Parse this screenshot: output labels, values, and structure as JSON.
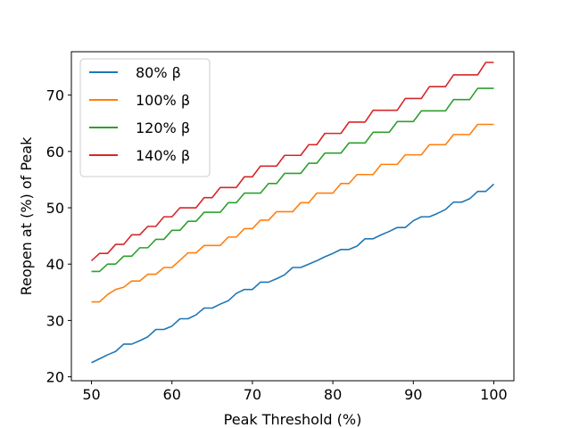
{
  "chart_data": {
    "type": "line",
    "title": "",
    "xlabel": "Peak Threshold (%)",
    "ylabel": "Reopen at (%) of Peak",
    "xlim": [
      47.5,
      102.5
    ],
    "ylim": [
      19.3,
      77.7
    ],
    "xticks": [
      50,
      60,
      70,
      80,
      90,
      100
    ],
    "yticks": [
      20,
      30,
      40,
      50,
      60,
      70
    ],
    "grid": false,
    "legend_position": "top-left",
    "x": [
      50,
      51,
      52,
      53,
      54,
      55,
      56,
      57,
      58,
      59,
      60,
      61,
      62,
      63,
      64,
      65,
      66,
      67,
      68,
      69,
      70,
      71,
      72,
      73,
      74,
      75,
      76,
      77,
      78,
      79,
      80,
      81,
      82,
      83,
      84,
      85,
      86,
      87,
      88,
      89,
      90,
      91,
      92,
      93,
      94,
      95,
      96,
      97,
      98,
      99,
      100
    ],
    "series": [
      {
        "name": "80% β",
        "color": "#1f77b4",
        "values": [
          22.5,
          23.2,
          23.9,
          24.5,
          25.8,
          25.8,
          26.4,
          27.1,
          28.4,
          28.4,
          29.0,
          30.3,
          30.3,
          31.0,
          32.2,
          32.2,
          32.9,
          33.5,
          34.8,
          35.5,
          35.5,
          36.8,
          36.8,
          37.4,
          38.1,
          39.4,
          39.4,
          40.0,
          40.6,
          41.3,
          41.9,
          42.6,
          42.6,
          43.2,
          44.5,
          44.5,
          45.2,
          45.8,
          46.5,
          46.5,
          47.7,
          48.4,
          48.4,
          49.0,
          49.7,
          51.0,
          51.0,
          51.6,
          52.9,
          52.9,
          54.2
        ]
      },
      {
        "name": "100% β",
        "color": "#ff7f0e",
        "values": [
          33.3,
          33.3,
          34.6,
          35.5,
          35.9,
          37.0,
          37.0,
          38.2,
          38.2,
          39.4,
          39.4,
          40.7,
          42.0,
          42.0,
          43.3,
          43.3,
          43.3,
          44.8,
          44.8,
          46.3,
          46.3,
          47.8,
          47.8,
          49.3,
          49.3,
          49.3,
          50.9,
          50.9,
          52.6,
          52.6,
          52.6,
          54.3,
          54.3,
          55.9,
          55.9,
          55.9,
          57.7,
          57.7,
          57.7,
          59.4,
          59.4,
          59.4,
          61.2,
          61.2,
          61.2,
          63.0,
          63.0,
          63.0,
          64.8,
          64.8,
          64.8
        ]
      },
      {
        "name": "120% β",
        "color": "#2ca02c",
        "values": [
          38.7,
          38.7,
          40.0,
          40.0,
          41.4,
          41.4,
          42.9,
          42.9,
          44.4,
          44.4,
          46.0,
          46.0,
          47.6,
          47.6,
          49.2,
          49.2,
          49.2,
          50.9,
          50.9,
          52.6,
          52.6,
          52.6,
          54.3,
          54.3,
          56.1,
          56.1,
          56.1,
          57.9,
          57.9,
          59.7,
          59.7,
          59.7,
          61.5,
          61.5,
          61.5,
          63.4,
          63.4,
          63.4,
          65.3,
          65.3,
          65.3,
          67.2,
          67.2,
          67.2,
          67.2,
          69.2,
          69.2,
          69.2,
          71.2,
          71.2,
          71.2
        ]
      },
      {
        "name": "140% β",
        "color": "#d62728",
        "values": [
          40.6,
          41.9,
          41.9,
          43.5,
          43.5,
          45.2,
          45.2,
          46.7,
          46.7,
          48.4,
          48.4,
          50.0,
          50.0,
          50.0,
          51.8,
          51.8,
          53.6,
          53.6,
          53.6,
          55.5,
          55.5,
          57.4,
          57.4,
          57.4,
          59.3,
          59.3,
          59.3,
          61.2,
          61.2,
          63.2,
          63.2,
          63.2,
          65.2,
          65.2,
          65.2,
          67.3,
          67.3,
          67.3,
          67.3,
          69.4,
          69.4,
          69.4,
          71.5,
          71.5,
          71.5,
          73.6,
          73.6,
          73.6,
          73.6,
          75.8,
          75.8
        ]
      }
    ]
  }
}
